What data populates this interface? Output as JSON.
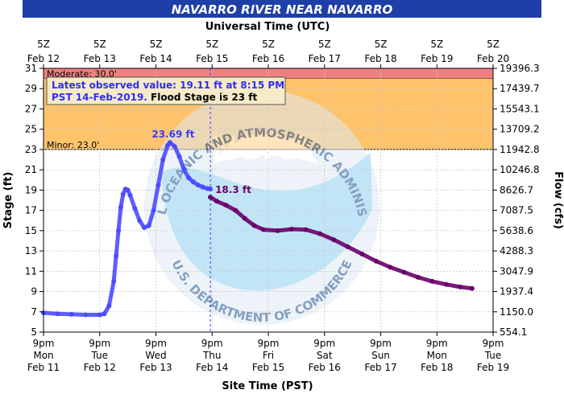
{
  "chart_data": {
    "type": "line",
    "title": "NAVARRO RIVER NEAR NAVARRO",
    "top_axis_label": "Universal Time (UTC)",
    "bottom_axis_label": "Site Time (PST)",
    "ylabel": "Stage (ft)",
    "y2label": "Flow (cfs)",
    "ylim": [
      5,
      31
    ],
    "xlim": [
      "2019-02-11T21:00",
      "2019-02-19T21:00"
    ],
    "grid": true,
    "y_ticks": [
      5,
      7,
      9,
      11,
      13,
      15,
      17,
      19,
      21,
      23,
      25,
      27,
      29,
      31
    ],
    "flow_ticks": [
      {
        "stage": 5,
        "label": "554.1"
      },
      {
        "stage": 7,
        "label": "1150.0"
      },
      {
        "stage": 9,
        "label": "1937.4"
      },
      {
        "stage": 11,
        "label": "3047.9"
      },
      {
        "stage": 13,
        "label": "4288.3"
      },
      {
        "stage": 15,
        "label": "5638.6"
      },
      {
        "stage": 17,
        "label": "7087.5"
      },
      {
        "stage": 19,
        "label": "8626.7"
      },
      {
        "stage": 21,
        "label": "10246.8"
      },
      {
        "stage": 23,
        "label": "11942.8"
      },
      {
        "stage": 25,
        "label": "13709.2"
      },
      {
        "stage": 27,
        "label": "15543.1"
      },
      {
        "stage": 29,
        "label": "17439.7"
      },
      {
        "stage": 31,
        "label": "19396.3"
      }
    ],
    "bottom_ticks": [
      {
        "t": "2019-02-11T21:00",
        "l1": "9pm",
        "l2": "Mon",
        "l3": "Feb 11"
      },
      {
        "t": "2019-02-12T21:00",
        "l1": "9pm",
        "l2": "Tue",
        "l3": "Feb 12"
      },
      {
        "t": "2019-02-13T21:00",
        "l1": "9pm",
        "l2": "Wed",
        "l3": "Feb 13"
      },
      {
        "t": "2019-02-14T21:00",
        "l1": "9pm",
        "l2": "Thu",
        "l3": "Feb 14"
      },
      {
        "t": "2019-02-15T21:00",
        "l1": "9pm",
        "l2": "Fri",
        "l3": "Feb 15"
      },
      {
        "t": "2019-02-16T21:00",
        "l1": "9pm",
        "l2": "Sat",
        "l3": "Feb 16"
      },
      {
        "t": "2019-02-17T21:00",
        "l1": "9pm",
        "l2": "Sun",
        "l3": "Feb 17"
      },
      {
        "t": "2019-02-18T21:00",
        "l1": "9pm",
        "l2": "Mon",
        "l3": "Feb 18"
      },
      {
        "t": "2019-02-19T21:00",
        "l1": "9pm",
        "l2": "Tue",
        "l3": "Feb 19"
      }
    ],
    "top_ticks": [
      {
        "t": "2019-02-11T21:00",
        "l1": "5Z",
        "l2": "Feb 12"
      },
      {
        "t": "2019-02-12T21:00",
        "l1": "5Z",
        "l2": "Feb 13"
      },
      {
        "t": "2019-02-13T21:00",
        "l1": "5Z",
        "l2": "Feb 14"
      },
      {
        "t": "2019-02-14T21:00",
        "l1": "5Z",
        "l2": "Feb 15"
      },
      {
        "t": "2019-02-15T21:00",
        "l1": "5Z",
        "l2": "Feb 16"
      },
      {
        "t": "2019-02-16T21:00",
        "l1": "5Z",
        "l2": "Feb 17"
      },
      {
        "t": "2019-02-17T21:00",
        "l1": "5Z",
        "l2": "Feb 18"
      },
      {
        "t": "2019-02-18T21:00",
        "l1": "5Z",
        "l2": "Feb 19"
      },
      {
        "t": "2019-02-19T21:00",
        "l1": "5Z",
        "l2": "Feb 20"
      }
    ],
    "flood_bands": [
      {
        "label": "Moderate: 30.0'",
        "from": 30,
        "to": 31,
        "color": "#f08080"
      },
      {
        "label": "Minor: 23.0'",
        "from": 23,
        "to": 30,
        "color": "#ffc36b"
      }
    ],
    "observed_note": {
      "line1": "Latest observed value: 19.11 ft at 8:15 PM",
      "line2_a": "PST 14-Feb-2019.",
      "line2_b": " Flood Stage is 23 ft"
    },
    "peak_label": "23.69 ft",
    "forecast_start_label": "18.3 ft",
    "current_time": "2019-02-14T20:15",
    "watermark": {
      "top": "NATIONAL OCEANIC AND ATMOSPHERIC ADMINISTRATION",
      "center": "NOAA",
      "bottom": "U.S. DEPARTMENT OF COMMERCE"
    },
    "series": [
      {
        "kind": "observed",
        "color": "#4b4bff",
        "points": [
          [
            "2019-02-11T21:00",
            6.9
          ],
          [
            "2019-02-12T03:00",
            6.8
          ],
          [
            "2019-02-12T09:00",
            6.75
          ],
          [
            "2019-02-12T15:00",
            6.7
          ],
          [
            "2019-02-12T21:00",
            6.7
          ],
          [
            "2019-02-12T23:00",
            6.8
          ],
          [
            "2019-02-13T01:00",
            7.6
          ],
          [
            "2019-02-13T03:00",
            10.0
          ],
          [
            "2019-02-13T04:00",
            12.5
          ],
          [
            "2019-02-13T05:00",
            15.0
          ],
          [
            "2019-02-13T06:00",
            17.3
          ],
          [
            "2019-02-13T07:00",
            18.6
          ],
          [
            "2019-02-13T08:00",
            19.1
          ],
          [
            "2019-02-13T09:00",
            19.0
          ],
          [
            "2019-02-13T10:00",
            18.5
          ],
          [
            "2019-02-13T12:00",
            17.2
          ],
          [
            "2019-02-13T14:00",
            16.0
          ],
          [
            "2019-02-13T16:00",
            15.3
          ],
          [
            "2019-02-13T18:00",
            15.5
          ],
          [
            "2019-02-13T20:00",
            17.0
          ],
          [
            "2019-02-13T22:00",
            19.5
          ],
          [
            "2019-02-14T00:00",
            22.0
          ],
          [
            "2019-02-14T02:00",
            23.4
          ],
          [
            "2019-02-14T03:00",
            23.69
          ],
          [
            "2019-02-14T05:00",
            23.3
          ],
          [
            "2019-02-14T07:00",
            22.3
          ],
          [
            "2019-02-14T09:00",
            21.0
          ],
          [
            "2019-02-14T11:00",
            20.2
          ],
          [
            "2019-02-14T13:00",
            19.8
          ],
          [
            "2019-02-14T15:00",
            19.5
          ],
          [
            "2019-02-14T17:00",
            19.3
          ],
          [
            "2019-02-14T19:00",
            19.15
          ],
          [
            "2019-02-14T20:15",
            19.11
          ]
        ]
      },
      {
        "kind": "forecast",
        "color": "#6a006a",
        "points": [
          [
            "2019-02-14T20:15",
            18.3
          ],
          [
            "2019-02-14T23:00",
            17.9
          ],
          [
            "2019-02-15T03:00",
            17.5
          ],
          [
            "2019-02-15T07:00",
            17.0
          ],
          [
            "2019-02-15T11:00",
            16.2
          ],
          [
            "2019-02-15T15:00",
            15.5
          ],
          [
            "2019-02-15T19:00",
            15.1
          ],
          [
            "2019-02-16T01:00",
            15.0
          ],
          [
            "2019-02-16T07:00",
            15.15
          ],
          [
            "2019-02-16T13:00",
            15.1
          ],
          [
            "2019-02-16T19:00",
            14.7
          ],
          [
            "2019-02-17T01:00",
            14.1
          ],
          [
            "2019-02-17T07:00",
            13.4
          ],
          [
            "2019-02-17T13:00",
            12.7
          ],
          [
            "2019-02-17T19:00",
            12.0
          ],
          [
            "2019-02-18T01:00",
            11.4
          ],
          [
            "2019-02-18T07:00",
            10.9
          ],
          [
            "2019-02-18T13:00",
            10.4
          ],
          [
            "2019-02-18T19:00",
            10.0
          ],
          [
            "2019-02-19T01:00",
            9.7
          ],
          [
            "2019-02-19T07:00",
            9.45
          ],
          [
            "2019-02-19T12:00",
            9.3
          ]
        ]
      }
    ]
  }
}
